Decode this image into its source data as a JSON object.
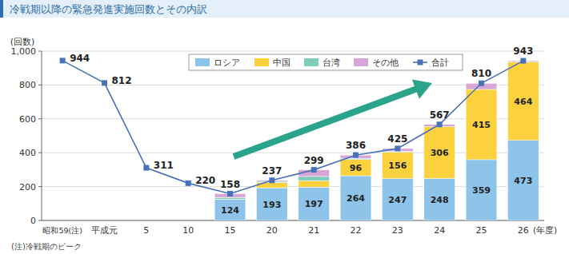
{
  "chart_data": {
    "type": "bar",
    "title": "冷戦期以降の緊急発進実施回数とその内訳",
    "ylabel": "(回数)",
    "xlabel": "(年度)",
    "note": "(注)冷戦期のピーク",
    "categories": [
      "昭和59(注)",
      "平成元",
      "5",
      "10",
      "15",
      "20",
      "21",
      "22",
      "23",
      "24",
      "25",
      "26"
    ],
    "stacked": true,
    "grid": true,
    "legend": "top",
    "data_labels": true,
    "ylim": [
      0,
      1000
    ],
    "yticks": [
      0,
      200,
      400,
      600,
      800,
      {
        "value": 1000,
        "label": "1,000"
      }
    ],
    "series": [
      {
        "name": "ロシア",
        "type": "bar",
        "color": "#8fc4ea",
        "data_labels": true,
        "values": [
          null,
          null,
          null,
          null,
          124,
          193,
          197,
          264,
          247,
          248,
          359,
          473
        ]
      },
      {
        "name": "中国",
        "type": "bar",
        "color": "#fbd23e",
        "data_labels": true,
        "values": [
          null,
          null,
          null,
          null,
          2,
          31,
          38,
          96,
          156,
          306,
          415,
          464
        ]
      },
      {
        "name": "台湾",
        "type": "bar",
        "color": "#7fcdb9",
        "data_labels": false,
        "values": [
          null,
          null,
          null,
          null,
          10,
          7,
          25,
          7,
          5,
          1,
          0,
          0
        ]
      },
      {
        "name": "その他",
        "type": "bar",
        "color": "#d8a6d6",
        "data_labels": false,
        "values": [
          null,
          null,
          null,
          null,
          22,
          6,
          39,
          19,
          17,
          12,
          36,
          6
        ]
      },
      {
        "name": "合計",
        "type": "line",
        "color": "#4a72b8",
        "marker": "square",
        "data_labels": true,
        "values": [
          944,
          812,
          311,
          220,
          158,
          237,
          299,
          386,
          425,
          567,
          810,
          943
        ]
      }
    ]
  }
}
